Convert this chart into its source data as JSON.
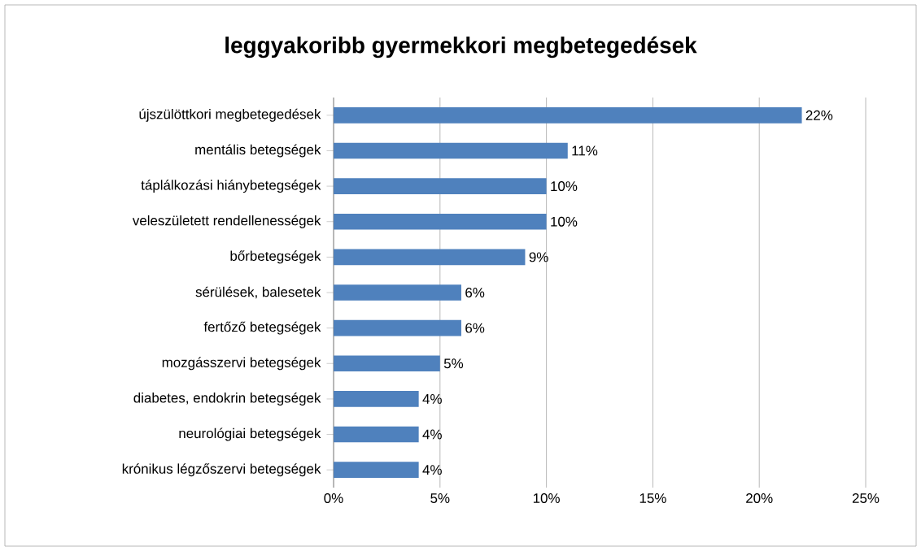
{
  "chart_data": {
    "type": "bar",
    "orientation": "horizontal",
    "title": "leggyakoribb gyermekkori megbetegedések",
    "categories": [
      "újszülöttkori megbetegedések",
      "mentális betegségek",
      "táplálkozási hiánybetegségek",
      "veleszületett rendellenességek",
      "bőrbetegségek",
      "sérülések, balesetek",
      "fertőző betegségek",
      "mozgásszervi betegségek",
      "diabetes, endokrin betegségek",
      "neurológiai betegségek",
      "krónikus légzőszervi betegségek"
    ],
    "values": [
      22,
      11,
      10,
      10,
      9,
      6,
      6,
      5,
      4,
      4,
      4
    ],
    "value_labels": [
      "22%",
      "11%",
      "10%",
      "10%",
      "9%",
      "6%",
      "6%",
      "5%",
      "4%",
      "4%",
      "4%"
    ],
    "color": "#4f81bd",
    "xlim": [
      0,
      25
    ],
    "xticks": [
      {
        "value": 0,
        "label": "0%"
      },
      {
        "value": 5,
        "label": "5%"
      },
      {
        "value": 10,
        "label": "10%"
      },
      {
        "value": 15,
        "label": "15%"
      },
      {
        "value": 20,
        "label": "20%"
      },
      {
        "value": 25,
        "label": "25%"
      }
    ],
    "grid": "x"
  }
}
